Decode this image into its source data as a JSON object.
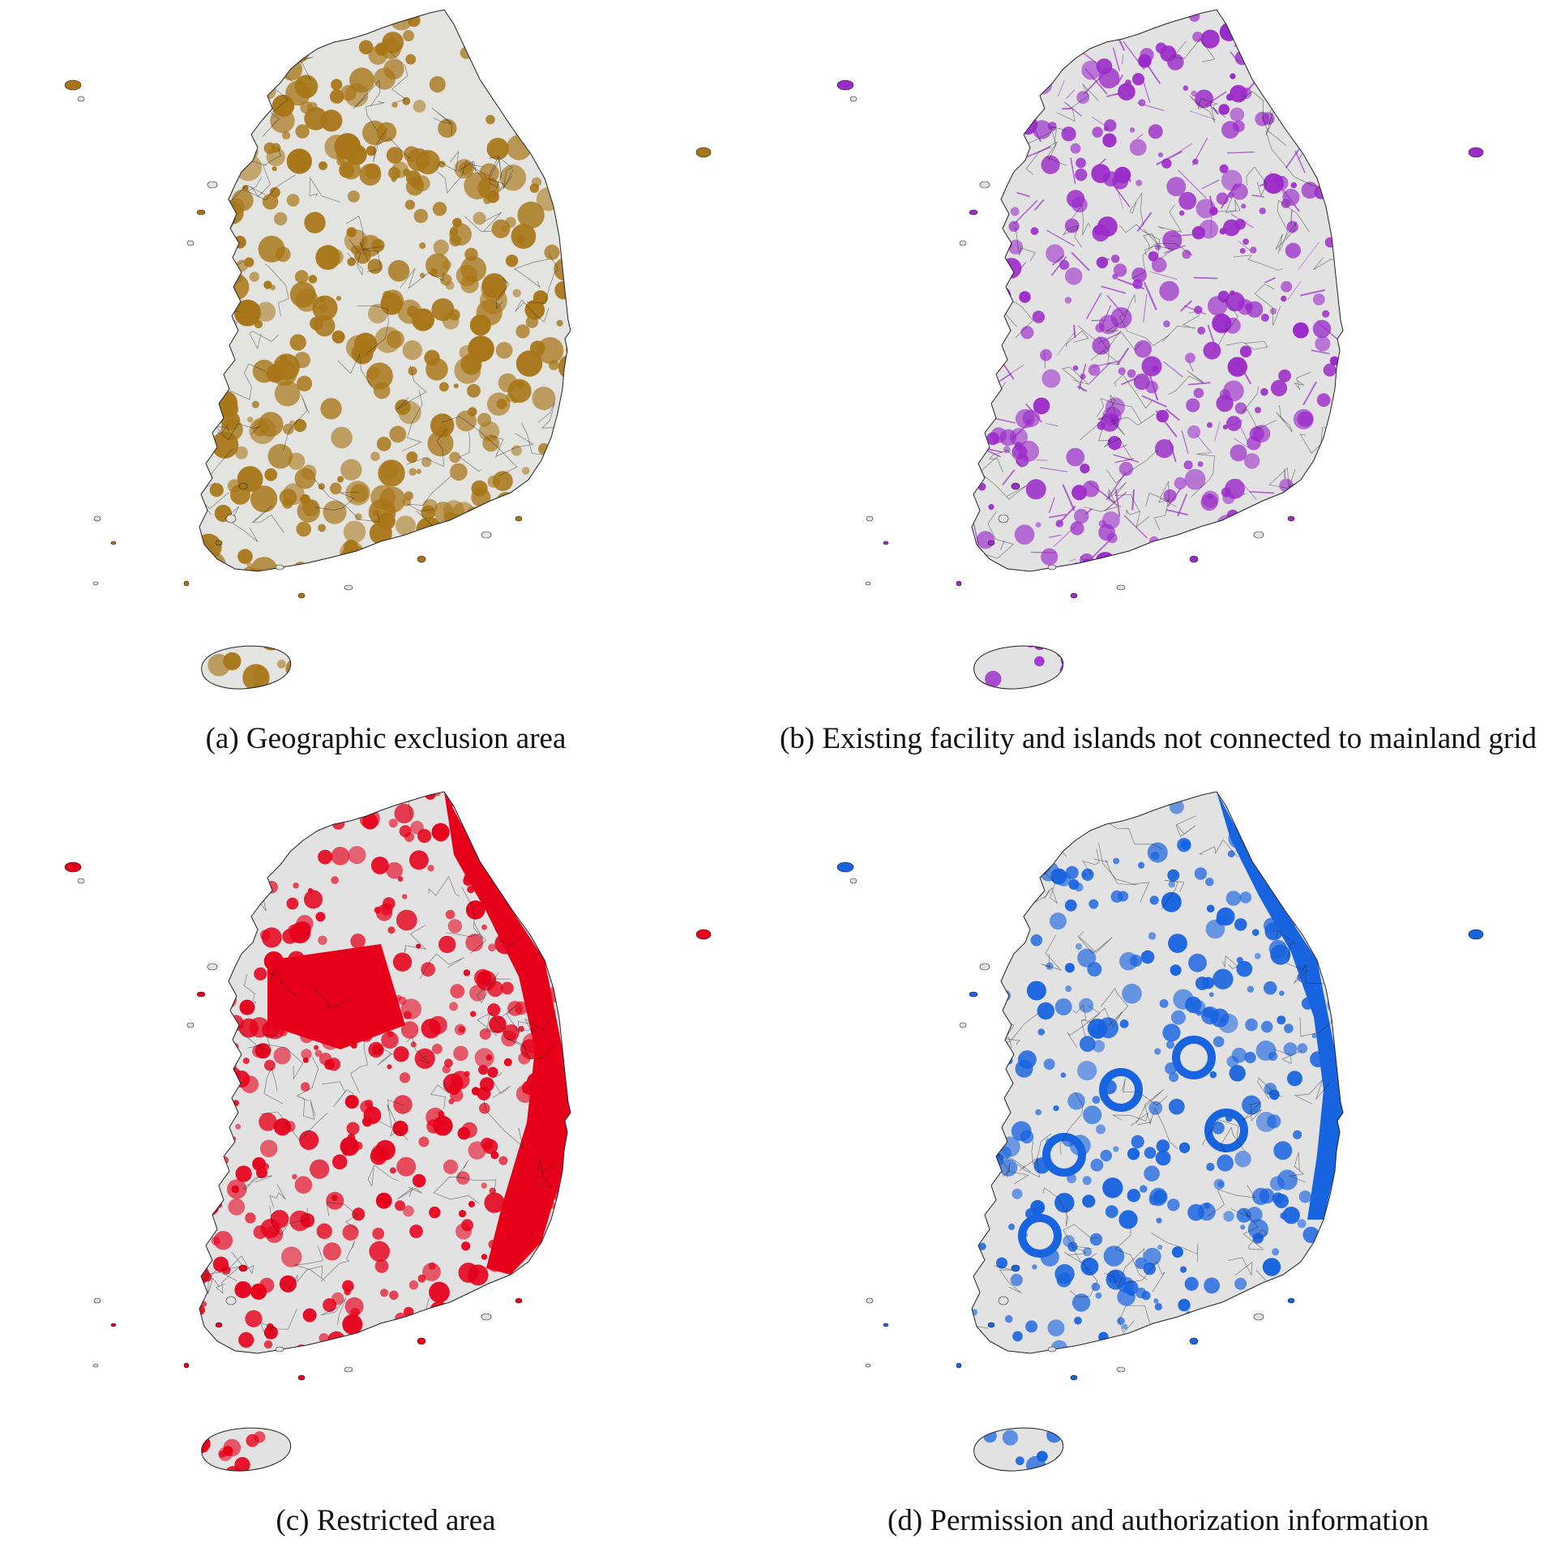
{
  "panels": [
    {
      "id": "a",
      "caption": "(a) Geographic exclusion area",
      "fill_color": "#a87618",
      "base_color": "#e3e3e0",
      "coverage": 0.6
    },
    {
      "id": "b",
      "caption": "(b) Existing facility and islands not connected to mainland grid",
      "fill_color": "#9b2bc9",
      "base_color": "#e2e2e2",
      "coverage": 0.45
    },
    {
      "id": "c",
      "caption": "(c) Restricted area",
      "fill_color": "#e6001a",
      "base_color": "#e2e2e2",
      "coverage": 0.6
    },
    {
      "id": "d",
      "caption": "(d) Permission and authorization information",
      "fill_color": "#1763e0",
      "base_color": "#e2e2e2",
      "coverage": 0.5
    }
  ],
  "border_color": "#222222"
}
